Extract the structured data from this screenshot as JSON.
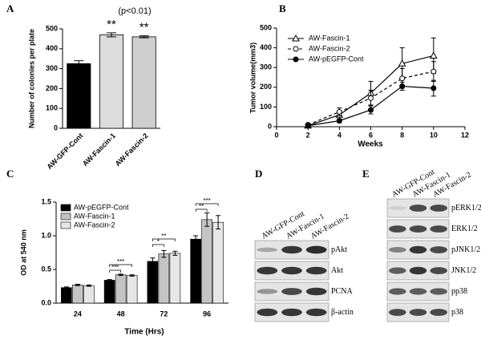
{
  "chart_data": [
    {
      "type": "bar",
      "panel": "A",
      "ylabel": "Number of colonies per plate",
      "note": "(p<0.01)",
      "categories": [
        "AW-GFP-Cont",
        "AW-Fascin-1",
        "AW-Fascin-2"
      ],
      "values": [
        325,
        470,
        460
      ],
      "errors": [
        15,
        10,
        5
      ],
      "significance": [
        null,
        "**",
        "**"
      ],
      "colors": [
        "#000000",
        "#dcdcdc",
        "#cfcfcf"
      ],
      "ylim": [
        0,
        500
      ],
      "yticks": [
        0,
        100,
        200,
        300,
        400,
        500
      ]
    },
    {
      "type": "line",
      "panel": "B",
      "ylabel": "Tumor volume(mm3)",
      "xlabel": "Weeks",
      "x": [
        2,
        4,
        6,
        8,
        10
      ],
      "series": [
        {
          "name": "AW-Fascin-1",
          "color": "#000000",
          "dashed": false,
          "values": [
            5,
            60,
            170,
            320,
            360
          ],
          "errors": [
            5,
            20,
            60,
            80,
            90
          ]
        },
        {
          "name": "AW-Fascin-2",
          "color": "#000000",
          "dashed": true,
          "values": [
            10,
            75,
            145,
            245,
            280
          ],
          "errors": [
            5,
            20,
            40,
            50,
            50
          ]
        },
        {
          "name": "AW-pEGFP-Cont",
          "color": "#000000",
          "dashed": false,
          "values": [
            5,
            30,
            85,
            205,
            195
          ],
          "errors": [
            3,
            10,
            20,
            20,
            40
          ]
        }
      ],
      "xlim": [
        0,
        12
      ],
      "xticks": [
        0,
        2,
        4,
        6,
        8,
        10,
        12
      ],
      "ylim": [
        0,
        500
      ],
      "yticks": [
        0,
        100,
        200,
        300,
        400,
        500
      ],
      "legend": "top-left"
    },
    {
      "type": "bar",
      "panel": "C",
      "ylabel": "OD at 540 nm",
      "xlabel": "Time (Hrs)",
      "categories": [
        "24",
        "48",
        "72",
        "96"
      ],
      "series": [
        {
          "name": "AW-pEGFP-Cont",
          "color": "#000000",
          "values": [
            0.23,
            0.34,
            0.62,
            0.95
          ],
          "errors": [
            0.01,
            0.01,
            0.05,
            0.05
          ]
        },
        {
          "name": "AW-Fascin-1",
          "color": "#c4c4c4",
          "values": [
            0.27,
            0.42,
            0.73,
            1.24
          ],
          "errors": [
            0.01,
            0.01,
            0.05,
            0.1
          ]
        },
        {
          "name": "AW-Fascin-2",
          "color": "#e6e6e6",
          "values": [
            0.26,
            0.41,
            0.74,
            1.2
          ],
          "errors": [
            0.01,
            0.01,
            0.03,
            0.1
          ]
        }
      ],
      "annotations": [
        "***",
        "***",
        "**",
        "*",
        "***",
        "**"
      ],
      "ylim": [
        0,
        1.5
      ],
      "yticks": [
        {
          "value": 0,
          "label": "0.0"
        },
        {
          "value": 0.5,
          "label": "0.5"
        },
        {
          "value": 1,
          "label": "1.0"
        },
        {
          "value": 1.5,
          "label": "1.5"
        }
      ],
      "legend": "top-left"
    }
  ],
  "blots": [
    {
      "panel": "D",
      "lanes": [
        "AW-GFP-Cont",
        "AW-Fascin-1",
        "AW-Fascin-2"
      ],
      "bands": [
        "pAkt",
        "Akt",
        "PCNA",
        "β-actin"
      ]
    },
    {
      "panel": "E",
      "lanes": [
        "AW-GFP-Cont",
        "AW-Fascin-1",
        "AW-Fascin-2"
      ],
      "bands": [
        "pERK1/2",
        "ERK1/2",
        "pJNK1/2",
        "JNK1/2",
        "pp38",
        "p38"
      ]
    }
  ]
}
